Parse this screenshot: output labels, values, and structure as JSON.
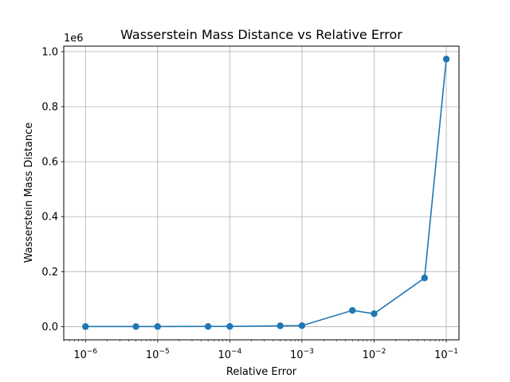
{
  "chart_data": {
    "type": "line",
    "title": "Wasserstein Mass Distance vs Relative Error",
    "xlabel": "Relative Error",
    "ylabel": "Wasserstein Mass Distance",
    "x_scale": "log",
    "y_offset_label": "1e6",
    "xlim": [
      5e-07,
      0.15
    ],
    "ylim": [
      -48000,
      1020000
    ],
    "grid": true,
    "color": "#1f77b4",
    "x_ticks": [
      {
        "value": 1e-06,
        "base": "10",
        "exp": "−6"
      },
      {
        "value": 1e-05,
        "base": "10",
        "exp": "−5"
      },
      {
        "value": 0.0001,
        "base": "10",
        "exp": "−4"
      },
      {
        "value": 0.001,
        "base": "10",
        "exp": "−3"
      },
      {
        "value": 0.01,
        "base": "10",
        "exp": "−2"
      },
      {
        "value": 0.1,
        "base": "10",
        "exp": "−1"
      }
    ],
    "y_ticks": [
      {
        "value": 0,
        "label": "0.0"
      },
      {
        "value": 200000,
        "label": "0.2"
      },
      {
        "value": 400000,
        "label": "0.4"
      },
      {
        "value": 600000,
        "label": "0.6"
      },
      {
        "value": 800000,
        "label": "0.8"
      },
      {
        "value": 1000000,
        "label": "1.0"
      }
    ],
    "x": [
      1e-06,
      5e-06,
      1e-05,
      5e-05,
      0.0001,
      0.0005,
      0.001,
      0.005,
      0.01,
      0.05,
      0.1
    ],
    "y": [
      200,
      300,
      400,
      600,
      800,
      3000,
      3500,
      59000,
      47000,
      177000,
      973000
    ]
  }
}
